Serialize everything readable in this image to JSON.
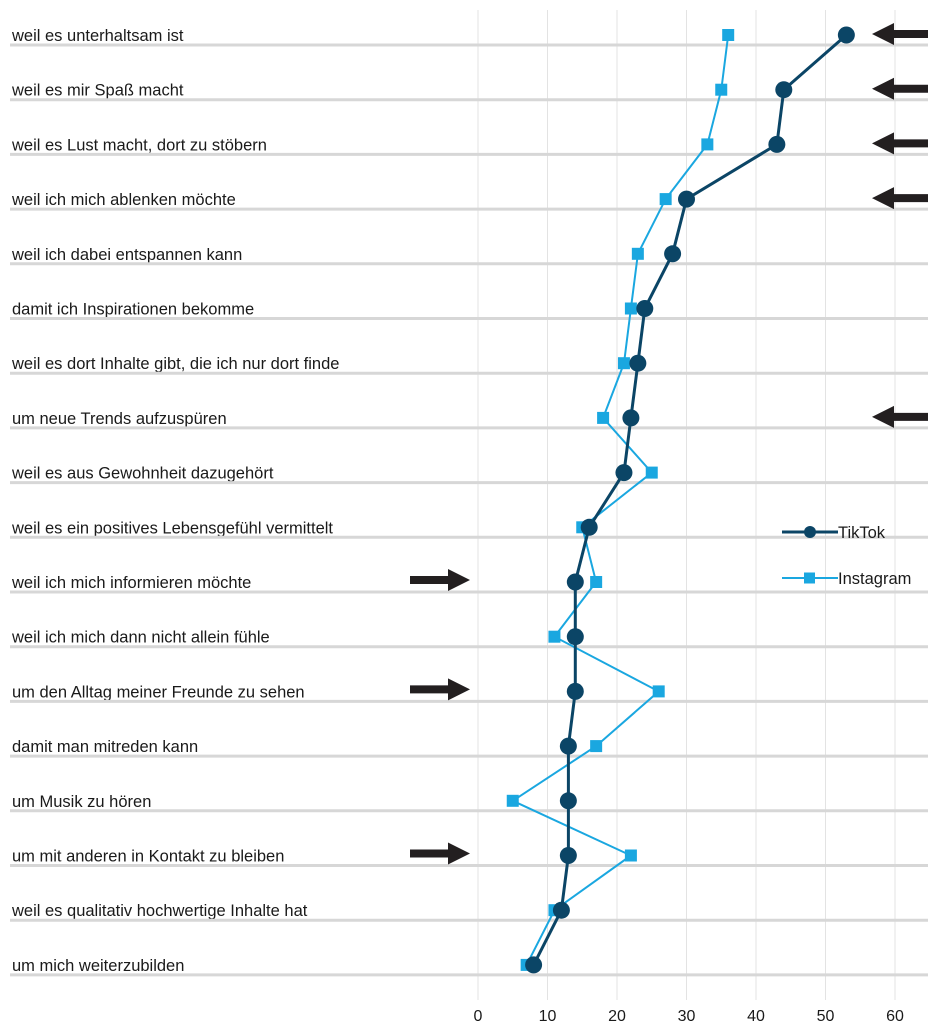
{
  "chart_data": {
    "type": "line",
    "orientation": "horizontal",
    "categories": [
      "weil es unterhaltsam ist",
      "weil es mir Spaß macht",
      "weil es Lust macht, dort zu stöbern",
      "weil ich mich ablenken möchte",
      "weil ich dabei entspannen kann",
      "damit ich Inspirationen bekomme",
      "weil es dort Inhalte gibt, die ich nur dort finde",
      "um neue Trends aufzuspüren",
      "weil es aus Gewohnheit dazugehört",
      "weil es ein positives Lebensgefühl vermittelt",
      "weil ich mich informieren möchte",
      "weil ich mich dann nicht allein fühle",
      "um den Alltag meiner Freunde zu sehen",
      "damit man mitreden kann",
      "um Musik zu hören",
      "um mit anderen in Kontakt zu bleiben",
      "weil es qualitativ hochwertige Inhalte hat",
      "um mich weiterzubilden"
    ],
    "series": [
      {
        "name": "TikTok",
        "color": "#0b4566",
        "marker": "circle",
        "values": [
          53,
          44,
          43,
          30,
          28,
          24,
          23,
          22,
          21,
          16,
          14,
          14,
          14,
          13,
          13,
          13,
          12,
          8
        ]
      },
      {
        "name": "Instagram",
        "color": "#1aa7e0",
        "marker": "square",
        "values": [
          36,
          35,
          33,
          27,
          23,
          22,
          21,
          18,
          25,
          15,
          17,
          11,
          26,
          17,
          5,
          22,
          11,
          7
        ]
      }
    ],
    "xlim": [
      0,
      65
    ],
    "xticks": [
      "0",
      "10",
      "20",
      "30",
      "40",
      "50",
      "60"
    ],
    "grid": true,
    "legend_position": "right",
    "annotations": {
      "right_arrows_at": [
        "weil es unterhaltsam ist",
        "weil es mir Spaß macht",
        "weil es Lust macht, dort zu stöbern",
        "weil ich mich ablenken möchte",
        "um neue Trends aufzuspüren"
      ],
      "left_arrows_at": [
        "weil ich mich informieren möchte",
        "um den Alltag meiner Freunde zu sehen",
        "um mit anderen in Kontakt zu bleiben"
      ]
    }
  }
}
